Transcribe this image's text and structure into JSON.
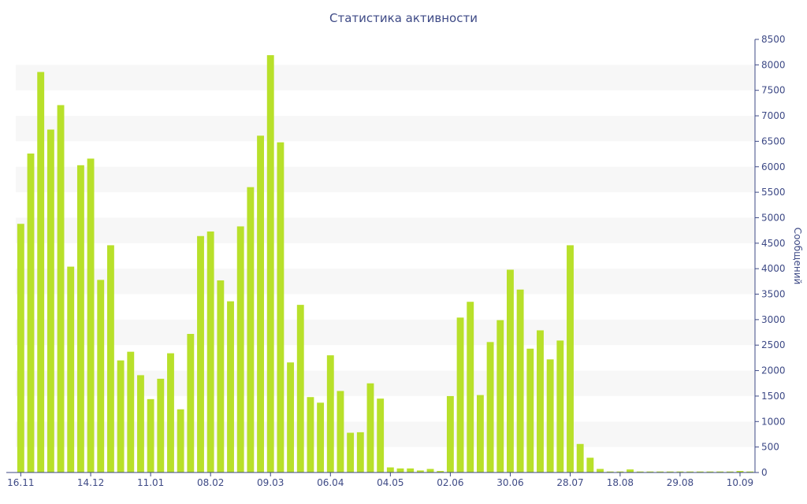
{
  "chart_data": {
    "type": "bar",
    "title": "Статистика активности",
    "xlabel": "",
    "ylabel": "Сообщений",
    "ylim": [
      0,
      8500
    ],
    "y_ticks": [
      0,
      500,
      1000,
      1500,
      2000,
      2500,
      3000,
      3500,
      4000,
      4500,
      5000,
      5500,
      6000,
      6500,
      7000,
      7500,
      8000,
      8500
    ],
    "y_axis_side": "right",
    "grid": "alternating horizontal bands",
    "bar_color": "#b8e02a",
    "band_color": "#f7f7f7",
    "text_color": "#3e4a86",
    "x_tick_labels": [
      {
        "label": "16.11",
        "bar_index": 0
      },
      {
        "label": "14.12",
        "bar_index": 7
      },
      {
        "label": "11.01",
        "bar_index": 13
      },
      {
        "label": "08.02",
        "bar_index": 19
      },
      {
        "label": "09.03",
        "bar_index": 25
      },
      {
        "label": "06.04",
        "bar_index": 31
      },
      {
        "label": "04.05",
        "bar_index": 37
      },
      {
        "label": "02.06",
        "bar_index": 43
      },
      {
        "label": "30.06",
        "bar_index": 49
      },
      {
        "label": "28.07",
        "bar_index": 55
      },
      {
        "label": "18.08",
        "bar_index": 60
      },
      {
        "label": "29.08",
        "bar_index": 66
      },
      {
        "label": "10.09",
        "bar_index": 72
      }
    ],
    "values": [
      4880,
      6260,
      7860,
      6730,
      7210,
      4040,
      6030,
      6160,
      3780,
      4460,
      2200,
      2370,
      1910,
      1440,
      1840,
      2340,
      1240,
      2720,
      4640,
      4730,
      3770,
      3360,
      4830,
      5600,
      6610,
      8190,
      6480,
      2160,
      3290,
      1480,
      1370,
      2300,
      1600,
      780,
      790,
      1750,
      1450,
      100,
      80,
      80,
      40,
      70,
      30,
      1500,
      3040,
      3350,
      1520,
      2560,
      2990,
      3980,
      3590,
      2430,
      2790,
      2220,
      2590,
      4460,
      560,
      290,
      70,
      20,
      20,
      60,
      20,
      20,
      20,
      20,
      20,
      20,
      20,
      20,
      20,
      20,
      30,
      20
    ]
  }
}
